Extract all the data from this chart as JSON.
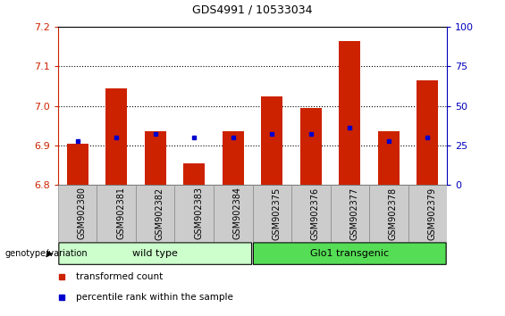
{
  "title": "GDS4991 / 10533034",
  "samples": [
    "GSM902380",
    "GSM902381",
    "GSM902382",
    "GSM902383",
    "GSM902384",
    "GSM902375",
    "GSM902376",
    "GSM902377",
    "GSM902378",
    "GSM902379"
  ],
  "transformed_count": [
    6.905,
    7.045,
    6.935,
    6.855,
    6.935,
    7.025,
    6.995,
    7.165,
    6.935,
    7.065
  ],
  "percentile_rank": [
    28,
    30,
    32,
    30,
    30,
    32,
    32,
    36,
    28,
    30
  ],
  "ylim_left": [
    6.8,
    7.2
  ],
  "ylim_right": [
    0,
    100
  ],
  "yticks_left": [
    6.8,
    6.9,
    7.0,
    7.1,
    7.2
  ],
  "yticks_right": [
    0,
    25,
    50,
    75,
    100
  ],
  "bar_color": "#cc2200",
  "dot_color": "#0000cc",
  "bar_width": 0.55,
  "groups": [
    {
      "label": "wild type",
      "start": 0,
      "end": 5,
      "color": "#ccffcc"
    },
    {
      "label": "Glo1 transgenic",
      "start": 5,
      "end": 10,
      "color": "#55dd55"
    }
  ],
  "group_label_prefix": "genotype/variation",
  "legend_items": [
    {
      "color": "#cc2200",
      "label": "transformed count"
    },
    {
      "color": "#0000cc",
      "label": "percentile rank within the sample"
    }
  ],
  "grid_color": "#000000",
  "background_color": "#ffffff",
  "left_axis_color": "#cc2200",
  "right_axis_color": "#0000bb",
  "base_value": 6.8,
  "tick_label_bg": "#cccccc"
}
